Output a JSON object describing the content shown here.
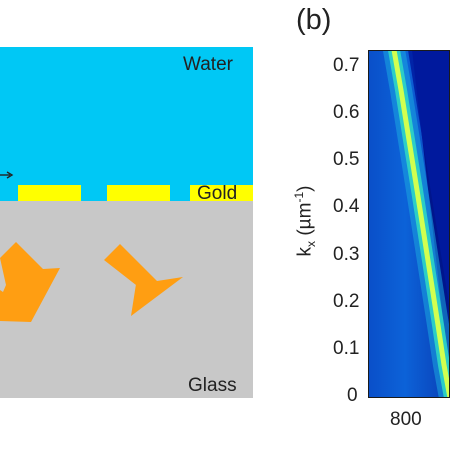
{
  "schematic": {
    "layers": {
      "water": "Water",
      "gold": "Gold",
      "glass": "Glass"
    },
    "colors": {
      "water": "#00c8f5",
      "gold_stripe": "#ffff00",
      "glass": "#c8c8c8",
      "arrow": "#ff9e12"
    }
  },
  "panel_b": {
    "label": "(b)",
    "ylabel_main": "k",
    "ylabel_sub": "x",
    "ylabel_unit_open": " (µm",
    "ylabel_unit_sup": "-1",
    "ylabel_unit_close": ")",
    "yticks": [
      "0.7",
      "0.6",
      "0.5",
      "0.4",
      "0.3",
      "0.2",
      "0.1",
      "0"
    ],
    "xticks": [
      "800"
    ],
    "colormap": {
      "background_high": "#00158c",
      "background_low": "#0c62d8",
      "band_core": "#d2ff50",
      "band_mid": "#2fd6c4"
    }
  }
}
